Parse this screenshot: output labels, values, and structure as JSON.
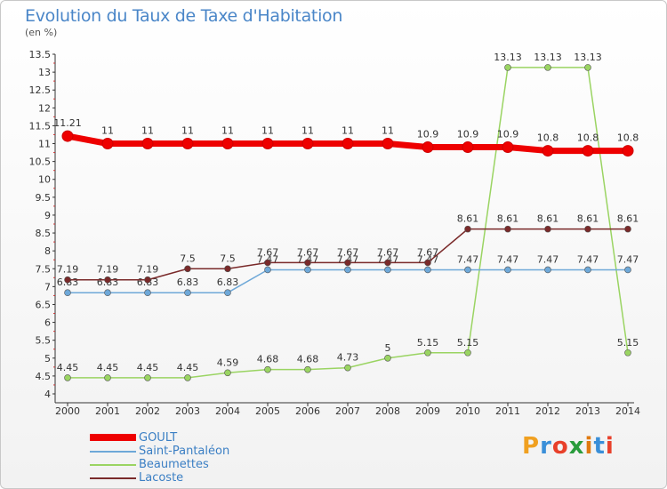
{
  "header": {
    "title": "Evolution du Taux de Taxe d'Habitation",
    "unit": "(en %)"
  },
  "logo": {
    "text": "Proxiti",
    "colors": [
      "#f0a020",
      "#3a8fd8",
      "#e8402a",
      "#2a9c3c",
      "#e07a10",
      "#3a8fd8",
      "#e8402a"
    ]
  },
  "chart_data": {
    "type": "line",
    "title": "Evolution du Taux de Taxe d'Habitation",
    "xlabel": "",
    "ylabel": "(en %)",
    "ylim": [
      4,
      13.5
    ],
    "y_ticks": [
      "4",
      "4.5",
      "5",
      "5.5",
      "6",
      "6.5",
      "7",
      "7.5",
      "8",
      "8.5",
      "9",
      "9.5",
      "10",
      "10.5",
      "11",
      "11.5",
      "12",
      "12.5",
      "13",
      "13.5"
    ],
    "x": [
      "2000",
      "2001",
      "2002",
      "2003",
      "2004",
      "2005",
      "2006",
      "2007",
      "2008",
      "2009",
      "2010",
      "2011",
      "2012",
      "2013",
      "2014"
    ],
    "grid": false,
    "legend_position": "bottom-left",
    "series": [
      {
        "name": "Beaumettes",
        "color": "#9ad462",
        "values": [
          4.45,
          4.45,
          4.45,
          4.45,
          4.59,
          4.68,
          4.68,
          4.73,
          5,
          5.15,
          5.15,
          13.13,
          13.13,
          13.13,
          5.15
        ],
        "labels": [
          "4.45",
          "4.45",
          "4.45",
          "4.45",
          "4.59",
          "4.68",
          "4.68",
          "4.73",
          "5",
          "5.15",
          "5.15",
          "13.13",
          "13.13",
          "13.13",
          "5.15"
        ]
      },
      {
        "name": "Saint-Pantaléon",
        "color": "#6ea8d8",
        "values": [
          6.83,
          6.83,
          6.83,
          6.83,
          6.83,
          7.47,
          7.47,
          7.47,
          7.47,
          7.47,
          7.47,
          7.47,
          7.47,
          7.47,
          7.47
        ],
        "labels": [
          "6.83",
          "6.83",
          "6.83",
          "6.83",
          "6.83",
          "7.47",
          "7.47",
          "7.47",
          "7.47",
          "7.47",
          "7.47",
          "7.47",
          "7.47",
          "7.47",
          "7.47"
        ]
      },
      {
        "name": "Lacoste",
        "color": "#7a2a2a",
        "values": [
          7.19,
          7.19,
          7.19,
          7.5,
          7.5,
          7.67,
          7.67,
          7.67,
          7.67,
          7.67,
          8.61,
          8.61,
          8.61,
          8.61,
          8.61
        ],
        "labels": [
          "7.19",
          "7.19",
          "7.19",
          "7.5",
          "7.5",
          "7.67",
          "7.67",
          "7.67",
          "7.67",
          "7.67",
          "8.61",
          "8.61",
          "8.61",
          "8.61",
          "8.61"
        ]
      },
      {
        "name": "GOULT",
        "color": "#ee0000",
        "values": [
          11.21,
          11,
          11,
          11,
          11,
          11,
          11,
          11,
          11,
          10.9,
          10.9,
          10.9,
          10.8,
          10.8,
          10.8
        ],
        "labels": [
          "11.21",
          "11",
          "11",
          "11",
          "11",
          "11",
          "11",
          "11",
          "11",
          "10.9",
          "10.9",
          "10.9",
          "10.8",
          "10.8",
          "10.8"
        ]
      }
    ],
    "legend_order": [
      "GOULT",
      "Saint-Pantaléon",
      "Beaumettes",
      "Lacoste"
    ]
  }
}
